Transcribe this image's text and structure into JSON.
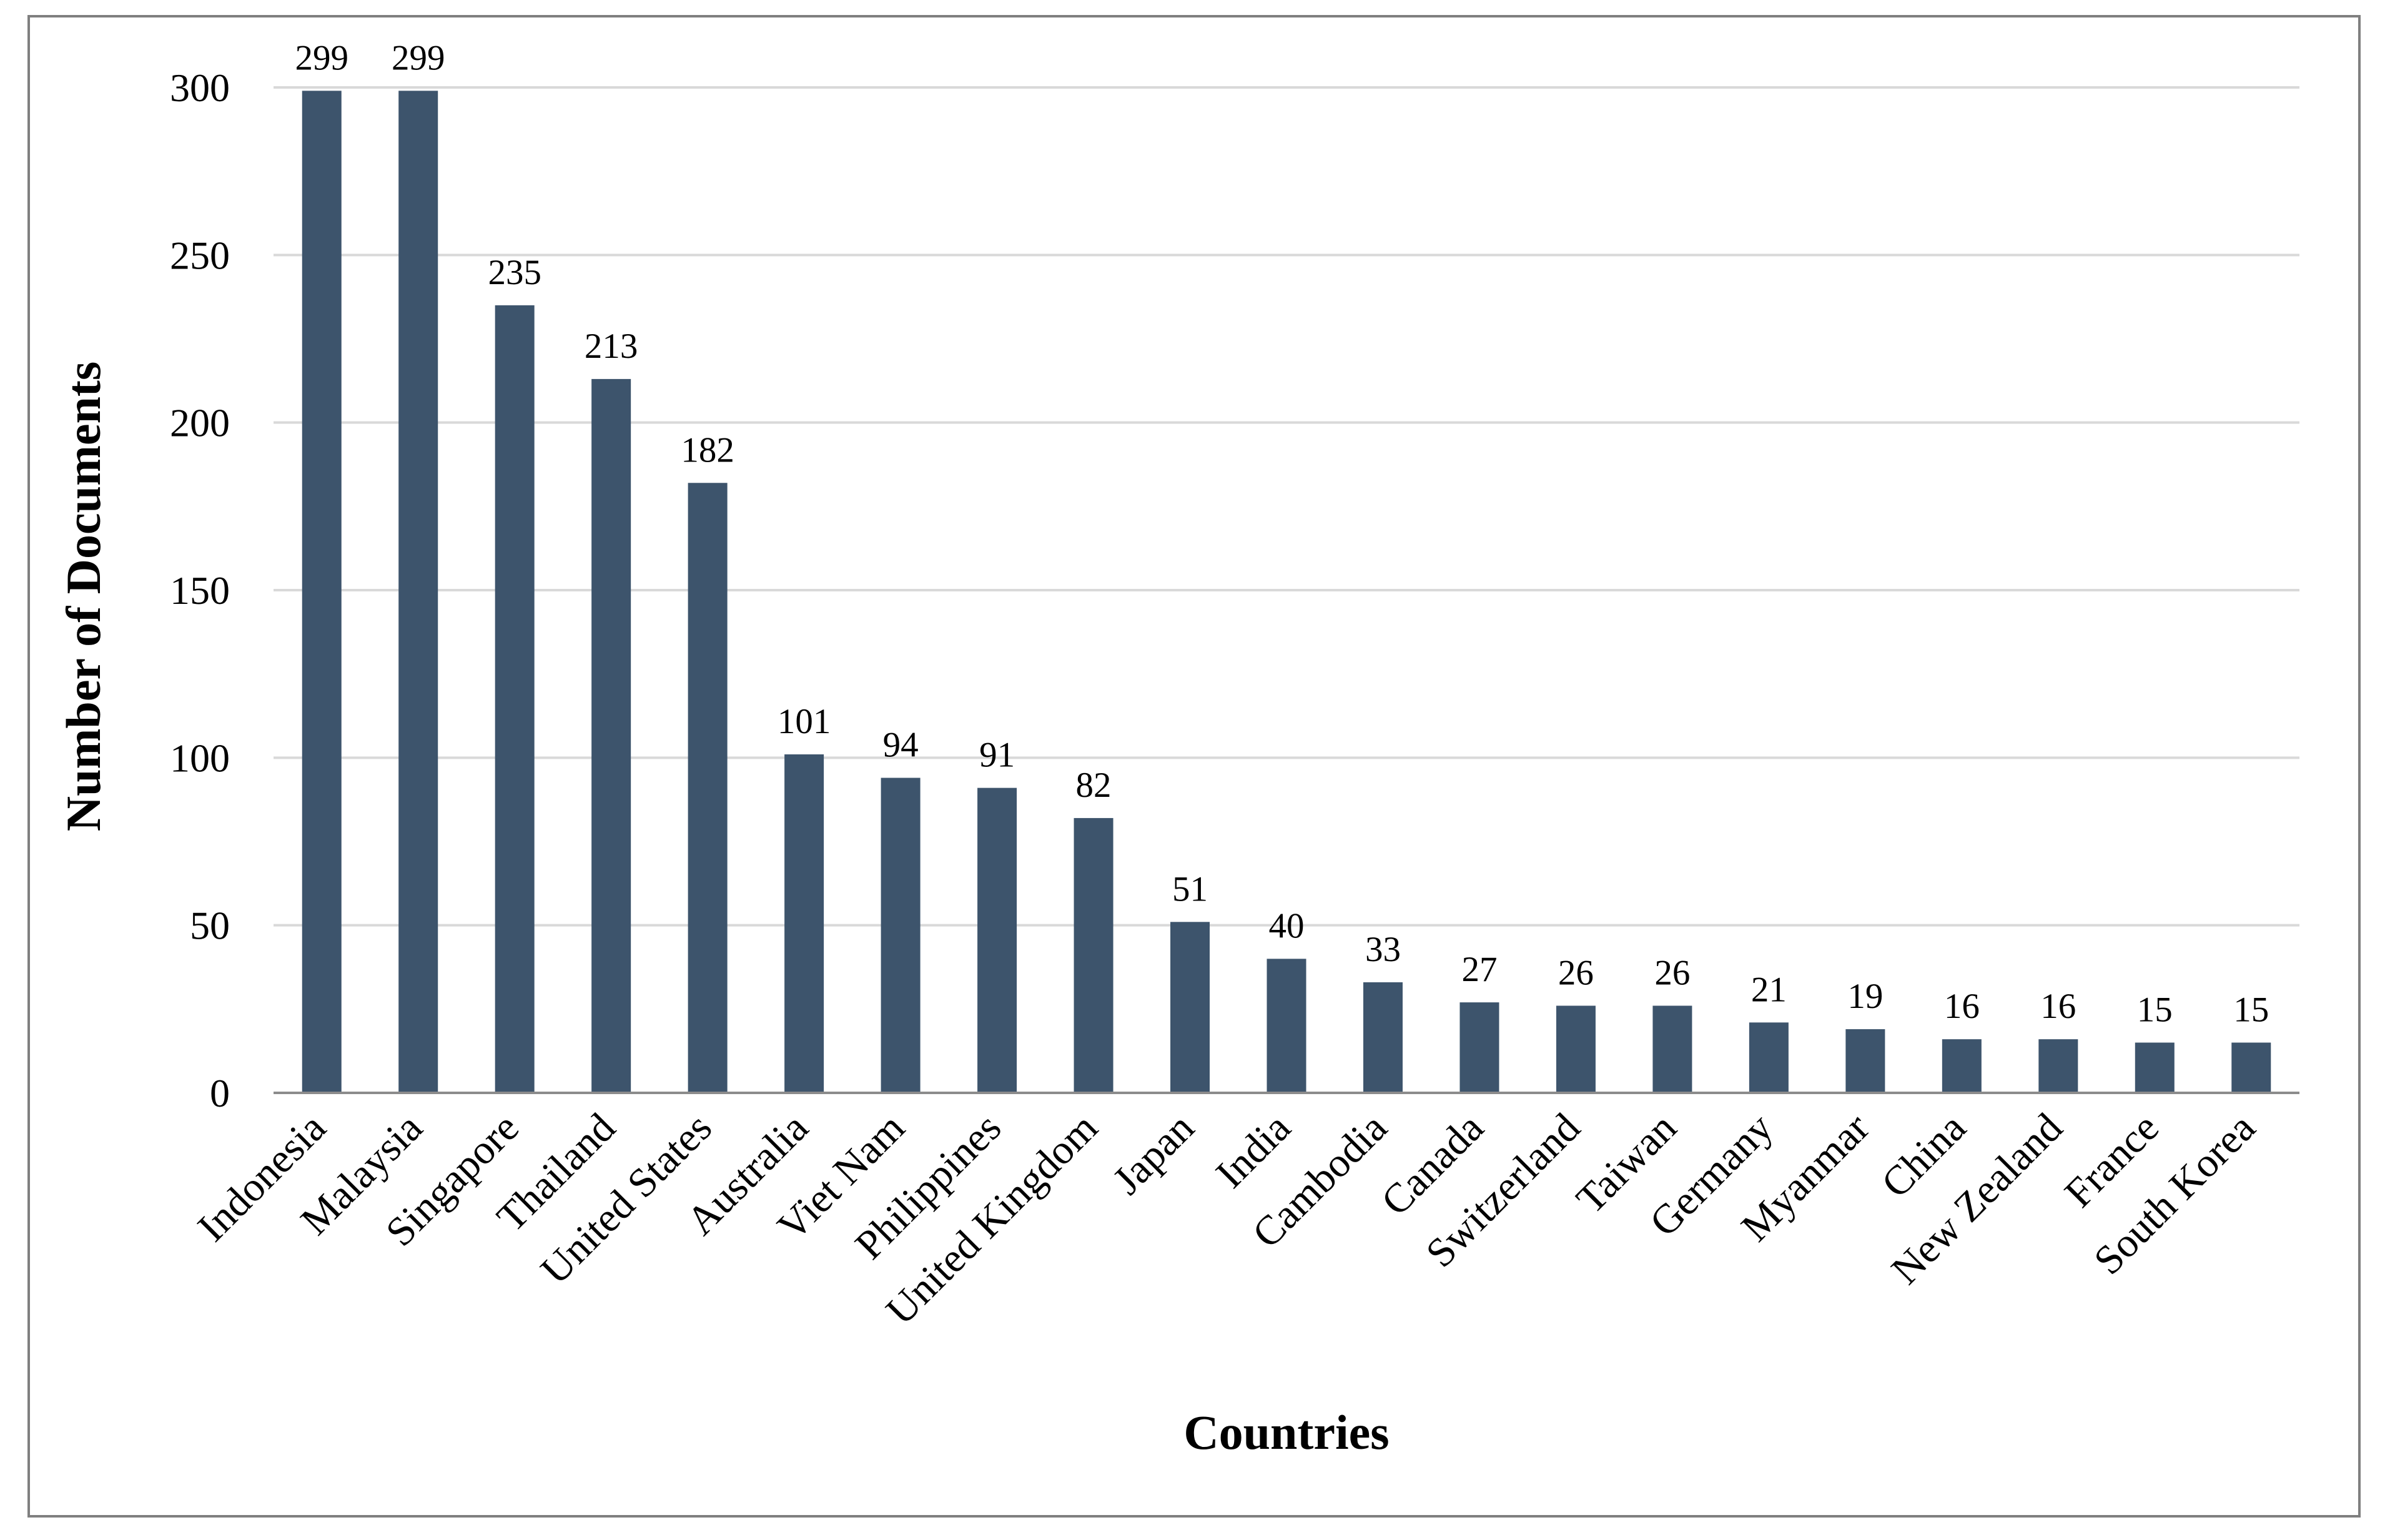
{
  "chart_data": {
    "type": "bar",
    "title": "",
    "xlabel": "Countries",
    "ylabel": "Number of Documents",
    "ylim": [
      0,
      300
    ],
    "yticks": [
      0,
      50,
      100,
      150,
      200,
      250,
      300
    ],
    "grid": true,
    "legend": "none",
    "bar_color": "#3d546c",
    "categories": [
      "Indonesia",
      "Malaysia",
      "Singapore",
      "Thailand",
      "United States",
      "Australia",
      "Viet Nam",
      "Philippines",
      "United Kingdom",
      "Japan",
      "India",
      "Cambodia",
      "Canada",
      "Switzerland",
      "Taiwan",
      "Germany",
      "Myanmar",
      "China",
      "New Zealand",
      "France",
      "South Korea"
    ],
    "values": [
      299,
      299,
      235,
      213,
      182,
      101,
      94,
      91,
      82,
      51,
      40,
      33,
      27,
      26,
      26,
      21,
      19,
      16,
      16,
      15,
      15
    ]
  }
}
